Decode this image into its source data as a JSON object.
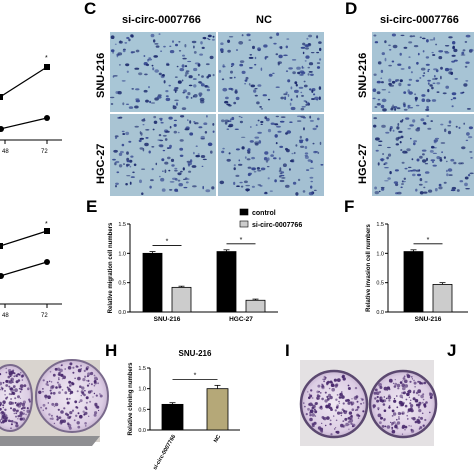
{
  "panels": {
    "C": {
      "letter": "C",
      "col_labels": [
        "si-circ-0007766",
        "NC"
      ],
      "row_labels": [
        "SNU-216",
        "HGC-27"
      ]
    },
    "D": {
      "letter": "D",
      "col_labels": [
        "si-circ-0007766"
      ],
      "row_labels": [
        "SNU-216",
        "HGC-27"
      ]
    },
    "A_partial": {
      "x_tick_labels": [
        "48",
        "72"
      ],
      "star": "*"
    },
    "B_partial": {
      "x_tick_labels": [
        "48",
        "72"
      ],
      "star": "*"
    },
    "E": {
      "letter": "E"
    },
    "F": {
      "letter": "F"
    },
    "H": {
      "letter": "H"
    },
    "I": {
      "letter": "I"
    },
    "J": {
      "letter": "J"
    }
  },
  "chart_data": [
    {
      "id": "E",
      "type": "bar",
      "categories": [
        "SNU-216",
        "HGC-27"
      ],
      "series": [
        {
          "name": "control",
          "values": [
            1.0,
            1.03
          ],
          "errors": [
            0.03,
            0.03
          ],
          "color": "#000000"
        },
        {
          "name": "si-circ-0007766",
          "values": [
            0.42,
            0.2
          ],
          "errors": [
            0.02,
            0.02
          ],
          "color": "#cccccc"
        }
      ],
      "ylabel": "Relative migration cell numbers",
      "ylim": [
        0,
        1.5
      ],
      "yticks": [
        "0.0",
        "0.5",
        "1.0",
        "1.5"
      ],
      "legend": "top-right",
      "significance": [
        "*",
        "*"
      ]
    },
    {
      "id": "F",
      "type": "bar",
      "categories": [
        "SNU-216"
      ],
      "series": [
        {
          "name": "control",
          "values": [
            1.03
          ],
          "errors": [
            0.03
          ],
          "color": "#000000"
        },
        {
          "name": "si-circ-0007766",
          "values": [
            0.47
          ],
          "errors": [
            0.03
          ],
          "color": "#cccccc"
        }
      ],
      "ylabel": "Relative invasion cell numbers",
      "ylim": [
        0,
        1.5
      ],
      "yticks": [
        "0.0",
        "0.5",
        "1.0",
        "1.5"
      ],
      "significance": [
        "*"
      ]
    },
    {
      "id": "H",
      "type": "bar",
      "title": "SNU-216",
      "categories": [
        "si-circ-0007766",
        "NC"
      ],
      "series": [
        {
          "name": "",
          "values": [
            0.62,
            1.0
          ],
          "errors": [
            0.04,
            0.08
          ],
          "colors": [
            "#000000",
            "#b5a878"
          ]
        }
      ],
      "ylabel": "Relative cloning numbers",
      "ylim": [
        0,
        1.5
      ],
      "yticks": [
        "0.0",
        "0.5",
        "1.0",
        "1.5"
      ],
      "significance": [
        "*"
      ]
    }
  ]
}
